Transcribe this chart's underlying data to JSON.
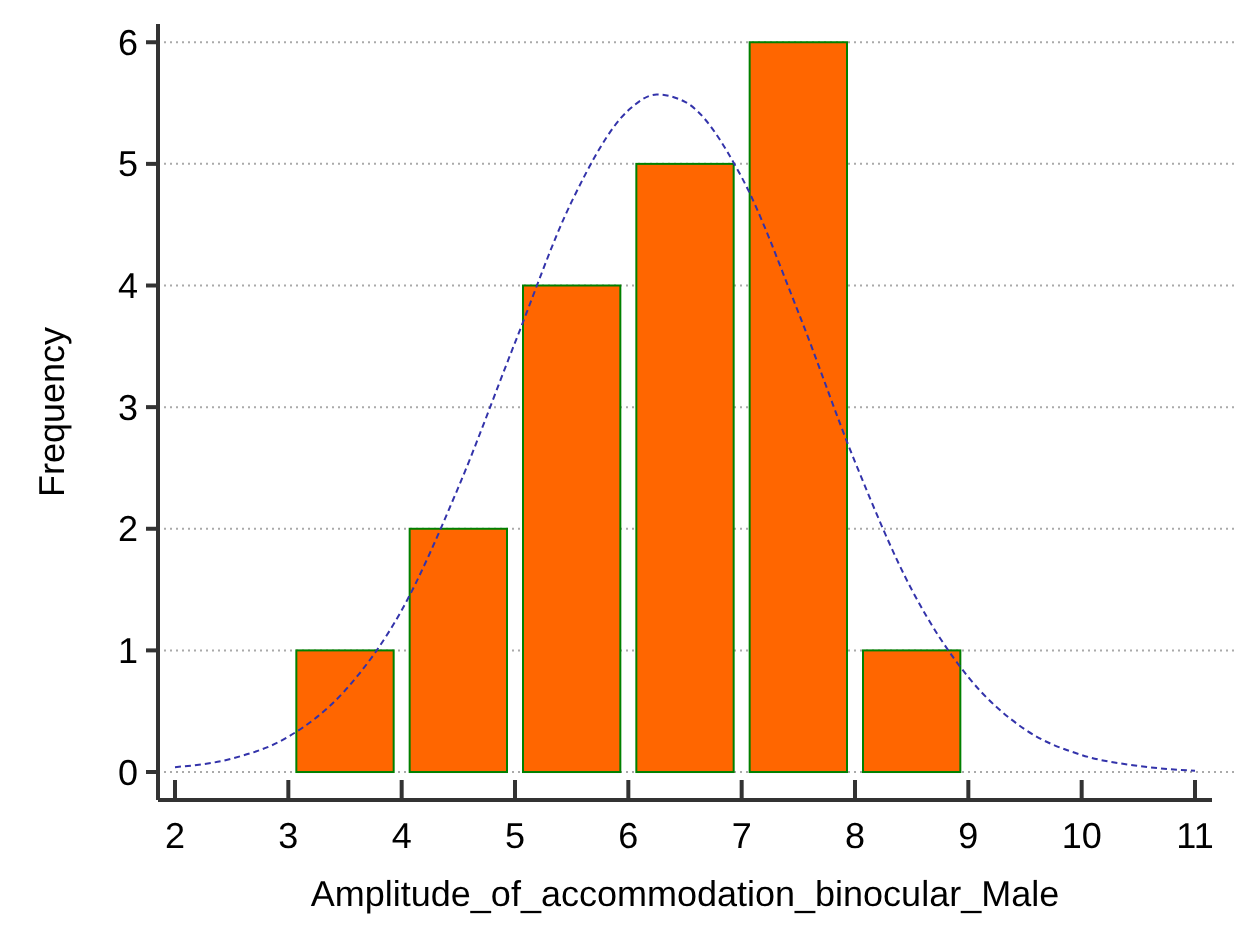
{
  "chart_data": {
    "type": "histogram",
    "xlabel": "Amplitude_of_accommodation_binocular_Male",
    "ylabel": "Frequency",
    "bins": [
      3,
      4,
      5,
      6,
      7,
      8,
      9
    ],
    "values": [
      1,
      2,
      4,
      5,
      6,
      1
    ],
    "color": "#ff6600",
    "series": [
      {
        "type": "line",
        "color": "#3333aa",
        "line_style": "dashed",
        "marker": "none",
        "x": [
          2,
          2.5,
          3,
          3.5,
          4,
          4.5,
          5,
          5.5,
          6,
          6.25,
          6.5,
          7,
          7.5,
          8,
          8.5,
          9,
          9.5,
          10,
          10.5,
          11
        ],
        "values": [
          0.04,
          0.11,
          0.29,
          0.67,
          1.33,
          2.34,
          3.53,
          4.69,
          5.44,
          5.57,
          5.51,
          4.89,
          3.78,
          2.55,
          1.5,
          0.78,
          0.35,
          0.14,
          0.05,
          0.01
        ]
      }
    ],
    "xlim": [
      1.85,
      11.15
    ],
    "ylim": [
      -0.23,
      6.15
    ],
    "xticks": [
      2,
      3,
      4,
      5,
      6,
      7,
      8,
      9,
      10,
      11
    ],
    "yticks": [
      0,
      1,
      2,
      3,
      4,
      5,
      6
    ],
    "grid": "y"
  }
}
